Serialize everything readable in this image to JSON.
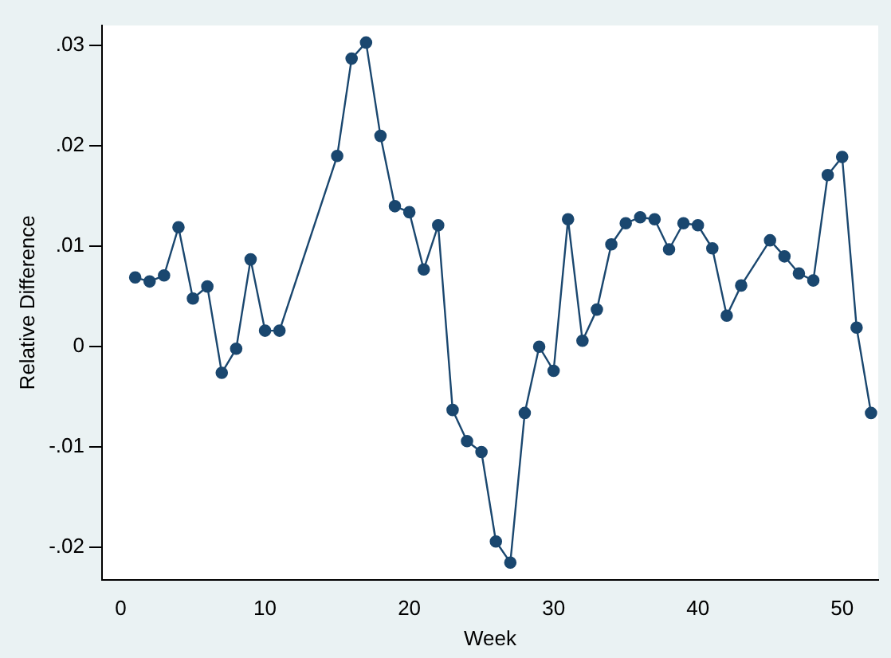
{
  "chart_data": {
    "type": "line",
    "xlabel": "Week",
    "ylabel": "Relative Difference",
    "series": [
      {
        "color": "#1a476f",
        "x": [
          1,
          2,
          3,
          4,
          5,
          6,
          7,
          8,
          9,
          10,
          11,
          15,
          16,
          17,
          18,
          19,
          20,
          21,
          22,
          23,
          24,
          25,
          26,
          27,
          28,
          29,
          30,
          31,
          32,
          33,
          34,
          35,
          36,
          37,
          38,
          39,
          40,
          41,
          42,
          43,
          45,
          46,
          47,
          48,
          49,
          50,
          51,
          52
        ],
        "values": [
          0.0069,
          0.0065,
          0.0071,
          0.0119,
          0.0048,
          0.006,
          -0.0026,
          -0.0002,
          0.0087,
          0.0016,
          0.0016,
          0.019,
          0.0287,
          0.0303,
          0.021,
          0.014,
          0.0134,
          0.0077,
          0.0121,
          -0.0063,
          -0.0094,
          -0.0105,
          -0.0194,
          -0.0215,
          -0.0066,
          0,
          -0.0024,
          0.0127,
          0.0006,
          0.0037,
          0.0102,
          0.0123,
          0.0129,
          0.0127,
          0.0097,
          0.0123,
          0.0121,
          0.0098,
          0.0031,
          0.0061,
          0.0106,
          0.009,
          0.0073,
          0.0066,
          0.0171,
          0.0189,
          0.0019,
          -0.0066
        ]
      }
    ],
    "xlim": [
      -1.3,
      52.5
    ],
    "xticks": [
      0,
      10,
      20,
      30,
      40,
      50
    ],
    "ylim": [
      -0.0232,
      0.032
    ],
    "yticks": [
      {
        "value": 0.03,
        "label": ".03"
      },
      {
        "value": 0.02,
        "label": ".02"
      },
      {
        "value": 0.01,
        "label": ".01"
      },
      0,
      {
        "value": -0.01,
        "label": "-.01"
      },
      {
        "value": -0.02,
        "label": "-.02"
      }
    ],
    "marker": "circle",
    "line_style": "solid",
    "grid": false,
    "legend": false
  }
}
